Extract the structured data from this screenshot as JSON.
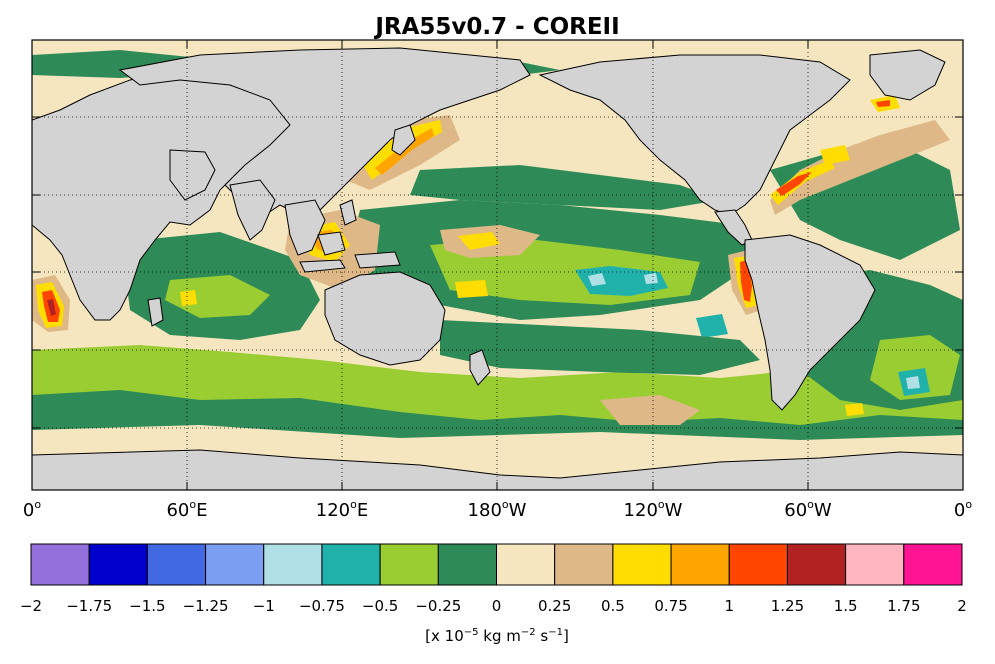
{
  "title": "JRA55v0.7 - COREII",
  "map": {
    "x_tick_labels": [
      {
        "deg": "0",
        "suffix": ""
      },
      {
        "deg": "60",
        "suffix": "E"
      },
      {
        "deg": "120",
        "suffix": "E"
      },
      {
        "deg": "180",
        "suffix": "W"
      },
      {
        "deg": "120",
        "suffix": "W"
      },
      {
        "deg": "60",
        "suffix": "W"
      },
      {
        "deg": "0",
        "suffix": ""
      }
    ],
    "projection": "cylindrical equidistant",
    "grid": "dotted",
    "land_color": "#d3d3d3",
    "coast_color": "#000000"
  },
  "colorbar": {
    "colors": [
      "#9370db",
      "#0000cd",
      "#4169e1",
      "#7b9ef2",
      "#b0e0e6",
      "#20b2aa",
      "#9acd32",
      "#2e8b57",
      "#f5e6c0",
      "#deb887",
      "#ffdd00",
      "#ffa500",
      "#ff4500",
      "#b22222",
      "#ffb6c1",
      "#ff1493"
    ],
    "tick_labels": [
      "−2",
      "−1.75",
      "−1.5",
      "−1.25",
      "−1",
      "−0.75",
      "−0.5",
      "−0.25",
      "0",
      "0.25",
      "0.5",
      "0.75",
      "1",
      "1.25",
      "1.5",
      "1.75",
      "2"
    ],
    "units_prefix": "[x 10",
    "units_exp1": "−5",
    "units_mid": " kg m",
    "units_exp2": "−2",
    "units_mid2": " s",
    "units_exp3": "−1",
    "units_suffix": "]"
  }
}
